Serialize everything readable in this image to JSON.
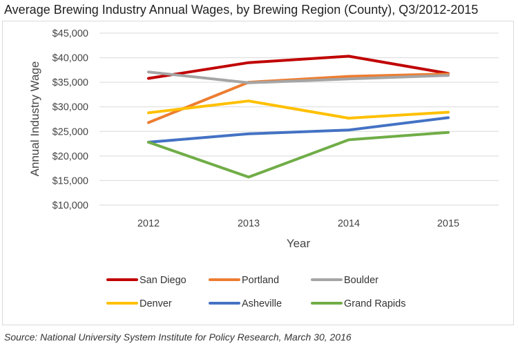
{
  "chart_data": {
    "type": "line",
    "title": "Average Brewing Industry Annual Wages, by Brewing Region (County), Q3/2012-2015",
    "xlabel": "Year",
    "ylabel": "Annual Industry Wage",
    "categories": [
      "2012",
      "2013",
      "2014",
      "2015"
    ],
    "ylim": [
      10000,
      45000
    ],
    "yticks": [
      10000,
      15000,
      20000,
      25000,
      30000,
      35000,
      40000,
      45000
    ],
    "ytick_labels": [
      "$10,000",
      "$15,000",
      "$20,000",
      "$25,000",
      "$30,000",
      "$35,000",
      "$40,000",
      "$45,000"
    ],
    "grid": true,
    "legend_position": "bottom",
    "series": [
      {
        "name": "San Diego",
        "color": "#c00000",
        "values": [
          35800,
          39000,
          40300,
          36800
        ]
      },
      {
        "name": "Portland",
        "color": "#ed7d31",
        "values": [
          26800,
          35000,
          36200,
          36700
        ]
      },
      {
        "name": "Boulder",
        "color": "#a5a5a5",
        "values": [
          37100,
          34900,
          35700,
          36400
        ]
      },
      {
        "name": "Denver",
        "color": "#ffc000",
        "values": [
          28800,
          31200,
          27700,
          28900
        ]
      },
      {
        "name": "Asheville",
        "color": "#4472c4",
        "values": [
          22800,
          24500,
          25300,
          27800
        ]
      },
      {
        "name": "Grand Rapids",
        "color": "#70ad47",
        "values": [
          22800,
          15700,
          23300,
          24800
        ]
      }
    ]
  },
  "source": "Source: National University System Institute for Policy Research, March 30, 2016"
}
